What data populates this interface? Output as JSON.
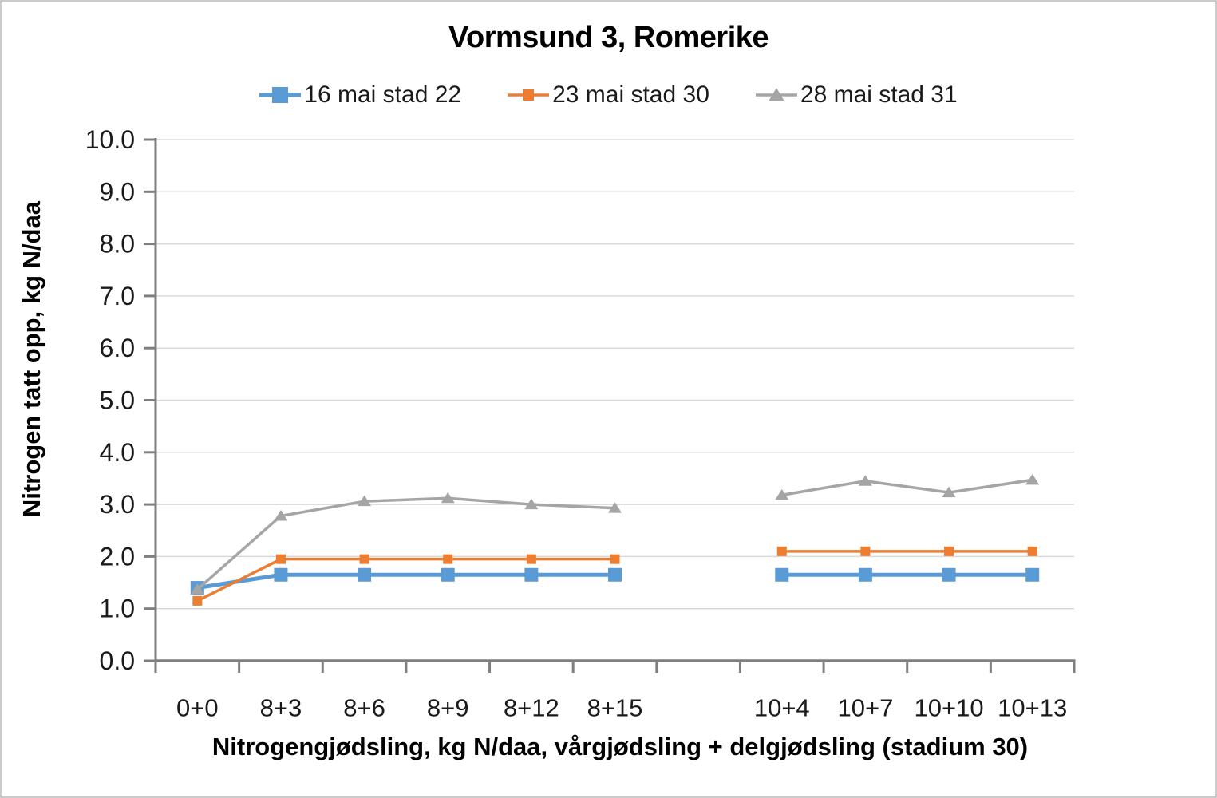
{
  "chart_data": {
    "type": "line",
    "title": "Vormsund 3, Romerike",
    "xlabel": "Nitrogengjødsling, kg N/daa, vårgjødsling + delgjødsling (stadium 30)",
    "ylabel": "Nitrogen tatt opp, kg N/daa",
    "categories": [
      "0+0",
      "8+3",
      "8+6",
      "8+9",
      "8+12",
      "8+15",
      "",
      "10+4",
      "10+7",
      "10+10",
      "10+13"
    ],
    "series": [
      {
        "name": "16 mai stad 22",
        "color": "#5B9BD5",
        "marker": "square",
        "values": [
          1.4,
          1.65,
          1.65,
          1.65,
          1.65,
          1.65,
          null,
          1.65,
          1.65,
          1.65,
          1.65
        ]
      },
      {
        "name": "23 mai stad 30",
        "color": "#ED7D31",
        "marker": "square-small",
        "values": [
          1.15,
          1.95,
          1.95,
          1.95,
          1.95,
          1.95,
          null,
          2.1,
          2.1,
          2.1,
          2.1
        ]
      },
      {
        "name": "28 mai stad 31",
        "color": "#A5A5A5",
        "marker": "triangle",
        "values": [
          1.37,
          2.78,
          3.06,
          3.12,
          3.0,
          2.93,
          null,
          3.18,
          3.45,
          3.23,
          3.47
        ]
      }
    ],
    "ylim": [
      0,
      10
    ],
    "ytick_step": 1.0,
    "ytick_decimals": 1,
    "grid": true,
    "legend_position": "top",
    "style": {
      "axis_color": "#7F7F7F",
      "gridline_color": "#D9D9D9",
      "tick_label_color": "#1a1a1a"
    }
  }
}
